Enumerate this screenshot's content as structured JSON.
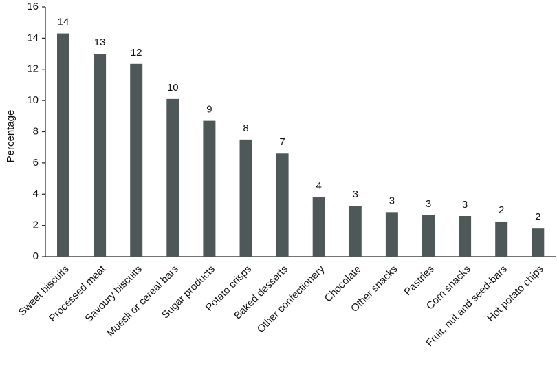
{
  "chart_data": {
    "type": "bar",
    "y_label": "Percentage",
    "categories": [
      "Sweet biscuits",
      "Processed meat",
      "Savoury biscuits",
      "Muesli or cereal bars",
      "Sugar products",
      "Potato crisps",
      "Baked desserts",
      "Other confectionery",
      "Chocolate",
      "Other snacks",
      "Pastries",
      "Corn snacks",
      "Fruit, nut and seed-bars",
      "Hot potato chips"
    ],
    "values": [
      14.3,
      13.0,
      12.35,
      10.1,
      8.7,
      7.5,
      6.6,
      3.8,
      3.25,
      2.85,
      2.65,
      2.6,
      2.25,
      1.8
    ],
    "value_labels": [
      "14",
      "13",
      "12",
      "10",
      "9",
      "8",
      "7",
      "4",
      "3",
      "3",
      "3",
      "3",
      "2",
      "2"
    ],
    "color": "#4f5858",
    "ylim": [
      0,
      16
    ],
    "yticks": [
      0,
      2,
      4,
      6,
      8,
      10,
      12,
      14,
      16
    ],
    "grid": false
  }
}
